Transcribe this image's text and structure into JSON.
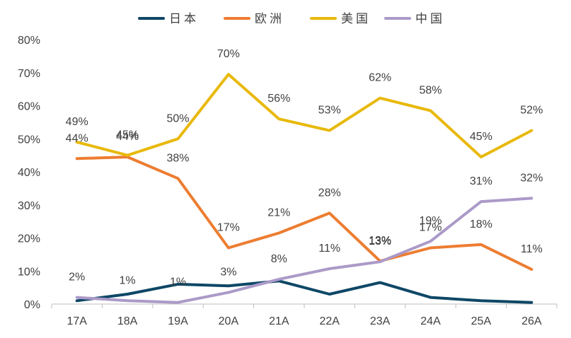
{
  "chart_data": {
    "type": "line",
    "categories": [
      "17A",
      "18A",
      "19A",
      "20A",
      "21A",
      "22A",
      "23A",
      "24A",
      "25A",
      "26A"
    ],
    "ylim": [
      0,
      80
    ],
    "yticks": [
      "0%",
      "10%",
      "20%",
      "30%",
      "40%",
      "50%",
      "60%",
      "70%",
      "80%"
    ],
    "grid": false,
    "legend_position": "top-center",
    "series": [
      {
        "name": "日本",
        "color": "#0e4766",
        "values": [
          1,
          3,
          6,
          5.5,
          7,
          3,
          6.5,
          2,
          1,
          0.5
        ],
        "labels": [
          "2%",
          "1%",
          "1%",
          "3%",
          "8%",
          "11%",
          "13%",
          "19%",
          "31%",
          "32%"
        ],
        "label_mode": "none"
      },
      {
        "name": "欧洲",
        "color": "#ed7d31",
        "values": [
          44,
          44.5,
          38,
          17,
          21.5,
          27.5,
          13,
          17,
          18,
          10.5
        ],
        "labels": [
          "44%",
          "44%",
          "38%",
          "17%",
          "21%",
          "28%",
          "13%",
          "17%",
          "18%",
          "11%"
        ]
      },
      {
        "name": "美国",
        "color": "#e8b90c",
        "values": [
          49,
          45,
          50,
          69.5,
          56,
          52.5,
          62.3,
          58.5,
          44.5,
          52.5
        ],
        "labels": [
          "49%",
          "45%",
          "50%",
          "70%",
          "56%",
          "53%",
          "62%",
          "58%",
          "45%",
          "52%"
        ]
      },
      {
        "name": "中国",
        "color": "#ab9ac8",
        "values": [
          2,
          1,
          0.5,
          3.5,
          7.5,
          10.7,
          12.8,
          19,
          31,
          32
        ],
        "labels": [
          "2%",
          "1%",
          "1%",
          "3%",
          "8%",
          "11%",
          "13%",
          "19%",
          "31%",
          "32%"
        ]
      }
    ]
  }
}
